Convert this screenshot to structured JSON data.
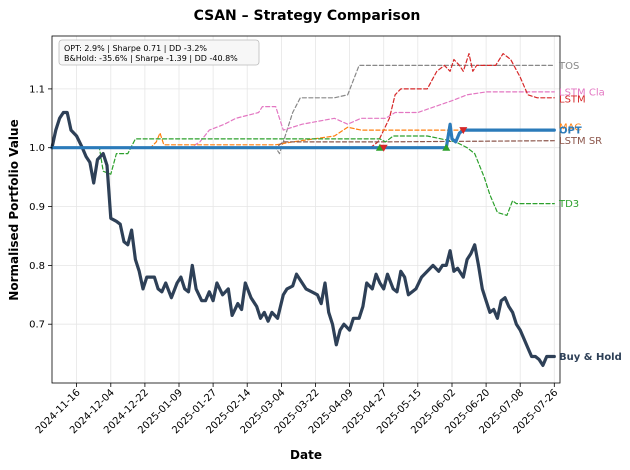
{
  "chart_data": {
    "type": "line",
    "title": "CSAN – Strategy Comparison",
    "xlabel": "Date",
    "ylabel": "Normalised Portfolio Value",
    "x_domain": [
      "2024-11-03",
      "2025-07-29"
    ],
    "ylim": [
      0.6,
      1.19
    ],
    "grid": true,
    "x_ticks": [
      "2024-11-16",
      "2024-12-04",
      "2024-12-22",
      "2025-01-09",
      "2025-01-27",
      "2025-02-14",
      "2025-03-04",
      "2025-03-22",
      "2025-04-09",
      "2025-04-27",
      "2025-05-15",
      "2025-06-02",
      "2025-06-20",
      "2025-07-08",
      "2025-07-26"
    ],
    "y_ticks": [
      0.7,
      0.8,
      0.9,
      1.0,
      1.1
    ],
    "y_tick_labels": [
      "0.7",
      "0.8",
      "0.9",
      "1.0",
      "1.1"
    ],
    "annotation": {
      "lines": [
        "OPT: 2.9% | Sharpe 0.71 | DD -3.2%",
        "B&Hold: -35.6% | Sharpe -1.39 | DD -40.8%"
      ],
      "placement": "top-left"
    },
    "series": [
      {
        "name": "TOS",
        "color": "#888888",
        "dashed": true,
        "width": 1.2,
        "points": [
          [
            "2024-11-03",
            1.0
          ],
          [
            "2025-03-01",
            1.0
          ],
          [
            "2025-03-03",
            0.99
          ],
          [
            "2025-03-05",
            1.01
          ],
          [
            "2025-03-10",
            1.06
          ],
          [
            "2025-03-14",
            1.085
          ],
          [
            "2025-04-01",
            1.085
          ],
          [
            "2025-04-08",
            1.09
          ],
          [
            "2025-04-14",
            1.14
          ],
          [
            "2025-04-18",
            1.14
          ],
          [
            "2025-07-26",
            1.14
          ]
        ]
      },
      {
        "name": "LSTM Cla",
        "color": "#e377c2",
        "dashed": true,
        "width": 1.2,
        "points": [
          [
            "2024-11-03",
            1.0
          ],
          [
            "2025-01-15",
            1.0
          ],
          [
            "2025-01-20",
            1.01
          ],
          [
            "2025-01-25",
            1.03
          ],
          [
            "2025-02-02",
            1.04
          ],
          [
            "2025-02-08",
            1.05
          ],
          [
            "2025-02-20",
            1.06
          ],
          [
            "2025-02-22",
            1.07
          ],
          [
            "2025-03-01",
            1.07
          ],
          [
            "2025-03-05",
            1.03
          ],
          [
            "2025-03-15",
            1.04
          ],
          [
            "2025-04-01",
            1.05
          ],
          [
            "2025-04-08",
            1.04
          ],
          [
            "2025-04-15",
            1.05
          ],
          [
            "2025-04-28",
            1.05
          ],
          [
            "2025-05-03",
            1.06
          ],
          [
            "2025-05-15",
            1.06
          ],
          [
            "2025-05-24",
            1.07
          ],
          [
            "2025-06-02",
            1.08
          ],
          [
            "2025-06-10",
            1.09
          ],
          [
            "2025-06-20",
            1.095
          ],
          [
            "2025-07-26",
            1.095
          ]
        ]
      },
      {
        "name": "LSTM",
        "color": "#d62728",
        "dashed": true,
        "width": 1.2,
        "points": [
          [
            "2024-11-03",
            1.0
          ],
          [
            "2025-04-20",
            1.0
          ],
          [
            "2025-04-24",
            1.01
          ],
          [
            "2025-04-27",
            1.03
          ],
          [
            "2025-04-30",
            1.05
          ],
          [
            "2025-05-03",
            1.09
          ],
          [
            "2025-05-06",
            1.1
          ],
          [
            "2025-05-20",
            1.1
          ],
          [
            "2025-05-25",
            1.13
          ],
          [
            "2025-05-29",
            1.14
          ],
          [
            "2025-06-01",
            1.13
          ],
          [
            "2025-06-03",
            1.15
          ],
          [
            "2025-06-06",
            1.14
          ],
          [
            "2025-06-08",
            1.13
          ],
          [
            "2025-06-11",
            1.16
          ],
          [
            "2025-06-13",
            1.13
          ],
          [
            "2025-06-15",
            1.14
          ],
          [
            "2025-06-25",
            1.14
          ],
          [
            "2025-06-29",
            1.16
          ],
          [
            "2025-07-03",
            1.15
          ],
          [
            "2025-07-08",
            1.12
          ],
          [
            "2025-07-12",
            1.09
          ],
          [
            "2025-07-17",
            1.085
          ],
          [
            "2025-07-26",
            1.085
          ]
        ]
      },
      {
        "name": "MAC",
        "color": "#ff7f0e",
        "dashed": true,
        "width": 1.2,
        "points": [
          [
            "2024-11-03",
            1.0
          ],
          [
            "2024-12-25",
            1.0
          ],
          [
            "2024-12-28",
            1.01
          ],
          [
            "2024-12-30",
            1.025
          ],
          [
            "2025-01-01",
            1.005
          ],
          [
            "2025-03-01",
            1.005
          ],
          [
            "2025-03-10",
            1.01
          ],
          [
            "2025-04-01",
            1.02
          ],
          [
            "2025-04-08",
            1.035
          ],
          [
            "2025-04-15",
            1.03
          ],
          [
            "2025-06-05",
            1.03
          ],
          [
            "2025-07-26",
            1.03
          ]
        ]
      },
      {
        "name": "LSTM SR",
        "color": "#8c564b",
        "dashed": true,
        "width": 1.2,
        "points": [
          [
            "2024-11-03",
            1.0
          ],
          [
            "2025-03-01",
            1.0
          ],
          [
            "2025-03-05",
            1.01
          ],
          [
            "2025-04-25",
            1.01
          ],
          [
            "2025-07-26",
            1.012
          ]
        ]
      },
      {
        "name": "TD3",
        "color": "#2ca02c",
        "dashed": true,
        "width": 1.2,
        "points": [
          [
            "2024-11-03",
            1.0
          ],
          [
            "2024-11-28",
            1.0
          ],
          [
            "2024-11-30",
            0.96
          ],
          [
            "2024-12-04",
            0.955
          ],
          [
            "2024-12-07",
            0.99
          ],
          [
            "2024-12-13",
            0.99
          ],
          [
            "2024-12-17",
            1.015
          ],
          [
            "2025-04-25",
            1.015
          ],
          [
            "2025-04-28",
            1.01
          ],
          [
            "2025-05-02",
            1.02
          ],
          [
            "2025-05-20",
            1.02
          ],
          [
            "2025-06-04",
            1.01
          ],
          [
            "2025-06-10",
            1.0
          ],
          [
            "2025-06-14",
            0.99
          ],
          [
            "2025-06-19",
            0.95
          ],
          [
            "2025-06-22",
            0.92
          ],
          [
            "2025-06-26",
            0.89
          ],
          [
            "2025-07-01",
            0.885
          ],
          [
            "2025-07-04",
            0.91
          ],
          [
            "2025-07-06",
            0.905
          ],
          [
            "2025-07-26",
            0.905
          ]
        ]
      },
      {
        "name": "Buy & Hold",
        "color": "#2e4057",
        "dashed": false,
        "width": 3.2,
        "points": [
          [
            "2024-11-03",
            1.0
          ],
          [
            "2024-11-05",
            1.03
          ],
          [
            "2024-11-07",
            1.05
          ],
          [
            "2024-11-09",
            1.06
          ],
          [
            "2024-11-11",
            1.06
          ],
          [
            "2024-11-13",
            1.03
          ],
          [
            "2024-11-16",
            1.02
          ],
          [
            "2024-11-19",
            1.0
          ],
          [
            "2024-11-21",
            0.985
          ],
          [
            "2024-11-23",
            0.975
          ],
          [
            "2024-11-25",
            0.94
          ],
          [
            "2024-11-27",
            0.98
          ],
          [
            "2024-11-30",
            0.99
          ],
          [
            "2024-12-02",
            0.97
          ],
          [
            "2024-12-04",
            0.88
          ],
          [
            "2024-12-07",
            0.875
          ],
          [
            "2024-12-09",
            0.87
          ],
          [
            "2024-12-11",
            0.84
          ],
          [
            "2024-12-13",
            0.835
          ],
          [
            "2024-12-15",
            0.86
          ],
          [
            "2024-12-17",
            0.81
          ],
          [
            "2024-12-19",
            0.79
          ],
          [
            "2024-12-21",
            0.76
          ],
          [
            "2024-12-23",
            0.78
          ],
          [
            "2024-12-27",
            0.78
          ],
          [
            "2024-12-29",
            0.76
          ],
          [
            "2024-12-31",
            0.755
          ],
          [
            "2025-01-02",
            0.77
          ],
          [
            "2025-01-05",
            0.745
          ],
          [
            "2025-01-08",
            0.77
          ],
          [
            "2025-01-10",
            0.78
          ],
          [
            "2025-01-12",
            0.76
          ],
          [
            "2025-01-14",
            0.755
          ],
          [
            "2025-01-16",
            0.8
          ],
          [
            "2025-01-18",
            0.76
          ],
          [
            "2025-01-21",
            0.74
          ],
          [
            "2025-01-23",
            0.74
          ],
          [
            "2025-01-25",
            0.755
          ],
          [
            "2025-01-27",
            0.74
          ],
          [
            "2025-01-29",
            0.77
          ],
          [
            "2025-02-01",
            0.75
          ],
          [
            "2025-02-04",
            0.76
          ],
          [
            "2025-02-06",
            0.715
          ],
          [
            "2025-02-09",
            0.735
          ],
          [
            "2025-02-11",
            0.725
          ],
          [
            "2025-02-13",
            0.77
          ],
          [
            "2025-02-16",
            0.745
          ],
          [
            "2025-02-19",
            0.73
          ],
          [
            "2025-02-21",
            0.71
          ],
          [
            "2025-02-23",
            0.72
          ],
          [
            "2025-02-25",
            0.705
          ],
          [
            "2025-02-27",
            0.72
          ],
          [
            "2025-03-02",
            0.71
          ],
          [
            "2025-03-05",
            0.75
          ],
          [
            "2025-03-07",
            0.76
          ],
          [
            "2025-03-10",
            0.765
          ],
          [
            "2025-03-12",
            0.785
          ],
          [
            "2025-03-15",
            0.77
          ],
          [
            "2025-03-17",
            0.76
          ],
          [
            "2025-03-20",
            0.755
          ],
          [
            "2025-03-23",
            0.75
          ],
          [
            "2025-03-25",
            0.735
          ],
          [
            "2025-03-27",
            0.77
          ],
          [
            "2025-03-29",
            0.72
          ],
          [
            "2025-03-31",
            0.7
          ],
          [
            "2025-04-02",
            0.665
          ],
          [
            "2025-04-04",
            0.69
          ],
          [
            "2025-04-06",
            0.7
          ],
          [
            "2025-04-09",
            0.69
          ],
          [
            "2025-04-11",
            0.71
          ],
          [
            "2025-04-14",
            0.71
          ],
          [
            "2025-04-16",
            0.73
          ],
          [
            "2025-04-18",
            0.77
          ],
          [
            "2025-04-21",
            0.76
          ],
          [
            "2025-04-23",
            0.785
          ],
          [
            "2025-04-25",
            0.77
          ],
          [
            "2025-04-27",
            0.76
          ],
          [
            "2025-04-29",
            0.785
          ],
          [
            "2025-05-02",
            0.76
          ],
          [
            "2025-05-04",
            0.755
          ],
          [
            "2025-05-06",
            0.79
          ],
          [
            "2025-05-08",
            0.78
          ],
          [
            "2025-05-10",
            0.75
          ],
          [
            "2025-05-14",
            0.76
          ],
          [
            "2025-05-17",
            0.78
          ],
          [
            "2025-05-20",
            0.79
          ],
          [
            "2025-05-23",
            0.8
          ],
          [
            "2025-05-26",
            0.79
          ],
          [
            "2025-05-28",
            0.8
          ],
          [
            "2025-05-30",
            0.8
          ],
          [
            "2025-06-01",
            0.825
          ],
          [
            "2025-06-03",
            0.79
          ],
          [
            "2025-06-05",
            0.795
          ],
          [
            "2025-06-08",
            0.78
          ],
          [
            "2025-06-10",
            0.81
          ],
          [
            "2025-06-12",
            0.82
          ],
          [
            "2025-06-14",
            0.835
          ],
          [
            "2025-06-16",
            0.8
          ],
          [
            "2025-06-18",
            0.76
          ],
          [
            "2025-06-20",
            0.74
          ],
          [
            "2025-06-22",
            0.72
          ],
          [
            "2025-06-24",
            0.725
          ],
          [
            "2025-06-26",
            0.71
          ],
          [
            "2025-06-28",
            0.74
          ],
          [
            "2025-06-30",
            0.745
          ],
          [
            "2025-07-02",
            0.73
          ],
          [
            "2025-07-04",
            0.72
          ],
          [
            "2025-07-06",
            0.7
          ],
          [
            "2025-07-08",
            0.69
          ],
          [
            "2025-07-10",
            0.675
          ],
          [
            "2025-07-12",
            0.66
          ],
          [
            "2025-07-14",
            0.645
          ],
          [
            "2025-07-16",
            0.645
          ],
          [
            "2025-07-18",
            0.64
          ],
          [
            "2025-07-20",
            0.63
          ],
          [
            "2025-07-22",
            0.645
          ],
          [
            "2025-07-26",
            0.645
          ]
        ]
      },
      {
        "name": "OPT",
        "color": "#2b7bba",
        "dashed": false,
        "width": 3.2,
        "points": [
          [
            "2024-11-03",
            1.0
          ],
          [
            "2025-05-30",
            1.0
          ],
          [
            "2025-05-31",
            1.02
          ],
          [
            "2025-06-01",
            1.04
          ],
          [
            "2025-06-02",
            1.015
          ],
          [
            "2025-06-04",
            1.01
          ],
          [
            "2025-06-06",
            1.025
          ],
          [
            "2025-06-08",
            1.03
          ],
          [
            "2025-07-26",
            1.03
          ]
        ]
      }
    ],
    "markers": [
      {
        "shape": "triangle-up",
        "color": "#2ca02c",
        "x": "2025-04-25",
        "y": 1.0
      },
      {
        "shape": "triangle-down",
        "color": "#d62728",
        "x": "2025-04-27",
        "y": 1.0
      },
      {
        "shape": "triangle-up",
        "color": "#2ca02c",
        "x": "2025-05-30",
        "y": 1.0
      },
      {
        "shape": "triangle-down",
        "color": "#d62728",
        "x": "2025-06-08",
        "y": 1.03
      }
    ],
    "end_labels": [
      {
        "text": "TOS",
        "color": "#888888",
        "y": 1.14
      },
      {
        "text": "LSTM Cla",
        "color": "#e377c2",
        "y": 1.095
      },
      {
        "text": "LSTM",
        "color": "#d62728",
        "y": 1.083
      },
      {
        "text": "MAC",
        "color": "#ff7f0e",
        "y": 1.035
      },
      {
        "text": "OPT",
        "color": "#2b7bba",
        "y": 1.03
      },
      {
        "text": "LSTM SR",
        "color": "#8c564b",
        "y": 1.012
      },
      {
        "text": "TD3",
        "color": "#2ca02c",
        "y": 0.905
      },
      {
        "text": "Buy & Hold",
        "color": "#2e4057",
        "y": 0.645
      }
    ]
  }
}
